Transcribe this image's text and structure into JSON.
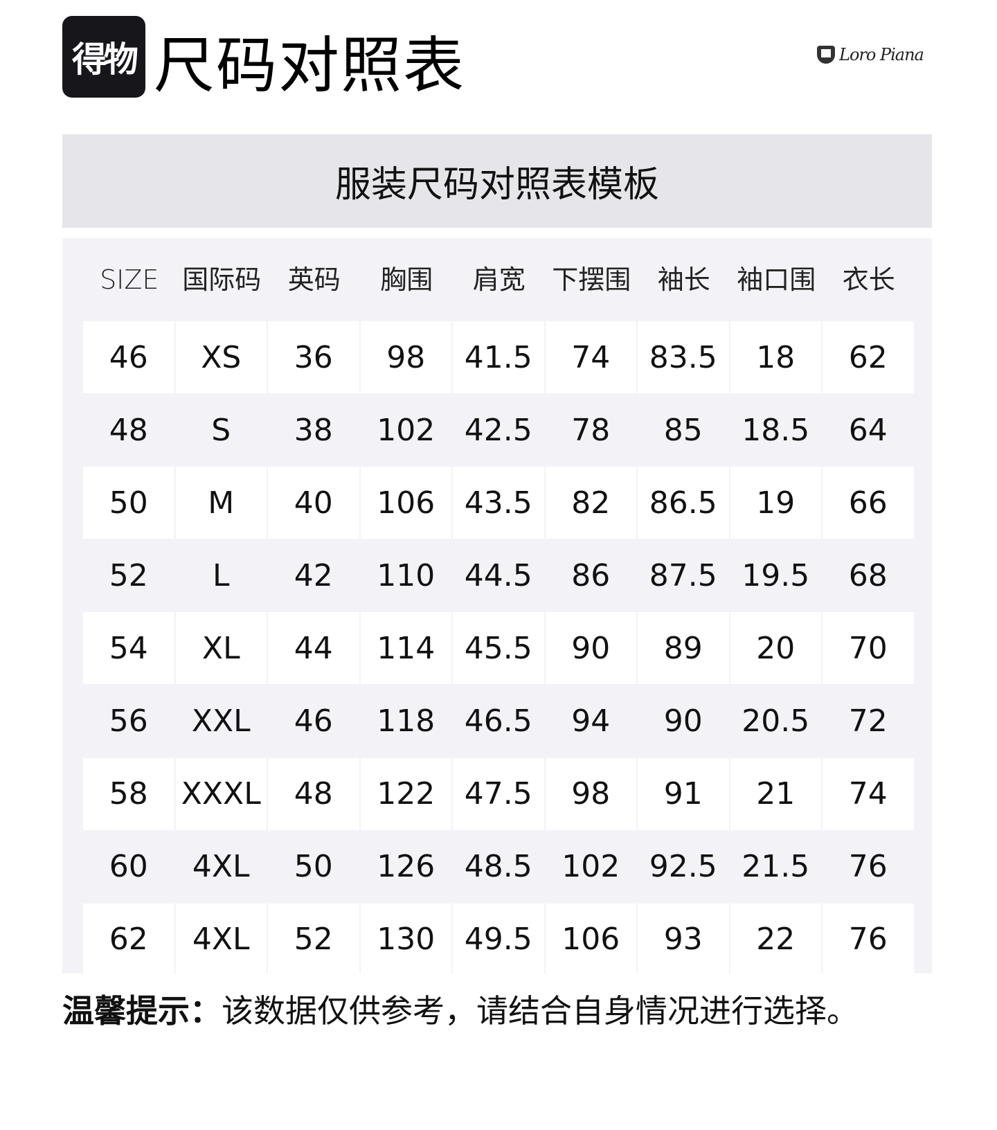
{
  "header": {
    "logo_text": "得物",
    "title": "尺码对照表",
    "brand": "Loro Piana"
  },
  "banner": {
    "title": "服装尺码对照表模板"
  },
  "table": {
    "columns": [
      "SIZE",
      "国际码",
      "英码",
      "胸围",
      "肩宽",
      "下摆围",
      "袖长",
      "袖口围",
      "衣长"
    ],
    "rows": [
      [
        "46",
        "XS",
        "36",
        "98",
        "41.5",
        "74",
        "83.5",
        "18",
        "62"
      ],
      [
        "48",
        "S",
        "38",
        "102",
        "42.5",
        "78",
        "85",
        "18.5",
        "64"
      ],
      [
        "50",
        "M",
        "40",
        "106",
        "43.5",
        "82",
        "86.5",
        "19",
        "66"
      ],
      [
        "52",
        "L",
        "42",
        "110",
        "44.5",
        "86",
        "87.5",
        "19.5",
        "68"
      ],
      [
        "54",
        "XL",
        "44",
        "114",
        "45.5",
        "90",
        "89",
        "20",
        "70"
      ],
      [
        "56",
        "XXL",
        "46",
        "118",
        "46.5",
        "94",
        "90",
        "20.5",
        "72"
      ],
      [
        "58",
        "XXXL",
        "48",
        "122",
        "47.5",
        "98",
        "91",
        "21",
        "74"
      ],
      [
        "60",
        "4XL",
        "50",
        "126",
        "48.5",
        "102",
        "92.5",
        "21.5",
        "76"
      ],
      [
        "62",
        "4XL",
        "52",
        "130",
        "49.5",
        "106",
        "93",
        "22",
        "76"
      ]
    ]
  },
  "footer": {
    "label": "温馨提示：",
    "text": "该数据仅供参考，请结合自身情况进行选择。"
  }
}
